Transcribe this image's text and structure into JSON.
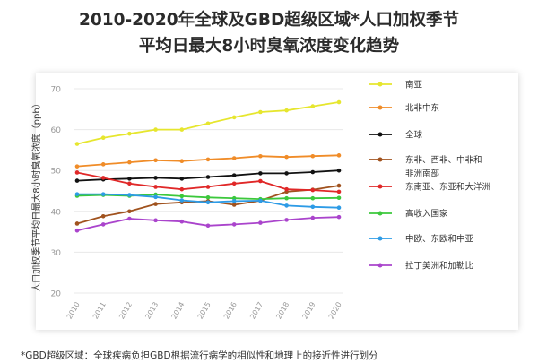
{
  "title_line1": "2010-2020年全球及GBD超级区域*人口加权季节",
  "title_line2": "平均日最大8小时臭氧浓度变化趋势",
  "footnote": "*GBD超级区域：全球疾病负担GBD根据流行病学的相似性和地理上的接近性进行划分",
  "chart_data": {
    "type": "line",
    "title": "",
    "xlabel": "",
    "ylabel": "人口加权季节平均日最大8小时臭氧浓度（ppb）",
    "ylim": [
      20,
      70
    ],
    "yticks": [
      20,
      30,
      40,
      50,
      60,
      70
    ],
    "grid": "horizontal",
    "legend_position": "right",
    "x": [
      "2010",
      "2011",
      "2012",
      "2013",
      "2014",
      "2015",
      "2016",
      "2017",
      "2018",
      "2019",
      "2020"
    ],
    "series": [
      {
        "name": "南亚",
        "color": "#e6e62e",
        "values": [
          56.5,
          58,
          59,
          60,
          60,
          61.5,
          63,
          64.3,
          64.7,
          65.7,
          66.7
        ]
      },
      {
        "name": "北非中东",
        "color": "#f08c28",
        "values": [
          51,
          51.5,
          52,
          52.5,
          52.3,
          52.7,
          53,
          53.5,
          53.3,
          53.5,
          53.7
        ]
      },
      {
        "name": "全球",
        "color": "#111111",
        "values": [
          47.5,
          47.8,
          48,
          48.2,
          48,
          48.4,
          48.8,
          49.3,
          49.3,
          49.6,
          50
        ]
      },
      {
        "name": "东非、西非、中非和非洲南部",
        "color": "#a0521e",
        "values": [
          37,
          38.8,
          40,
          41.8,
          42.2,
          42.5,
          41.6,
          42.6,
          44.8,
          45.3,
          46.3
        ]
      },
      {
        "name": "东南亚、东亚和大洋洲",
        "color": "#e02828",
        "values": [
          49.5,
          48.2,
          46.8,
          46,
          45.4,
          46,
          46.8,
          47.4,
          45.4,
          45.2,
          44.8
        ]
      },
      {
        "name": "高收入国家",
        "color": "#3cc83c",
        "values": [
          43.8,
          44,
          43.8,
          44.1,
          43.7,
          43.4,
          43.2,
          43,
          43.2,
          43.2,
          43.3
        ]
      },
      {
        "name": "中欧、东欧和中亚",
        "color": "#2d9be6",
        "values": [
          44.2,
          44.2,
          44,
          43.5,
          42.7,
          42.2,
          42.5,
          42.6,
          41.4,
          41.1,
          40.9
        ]
      },
      {
        "name": "拉丁美洲和加勒比",
        "color": "#aa44cc",
        "values": [
          35.3,
          36.8,
          38.2,
          37.8,
          37.5,
          36.5,
          36.8,
          37.2,
          37.9,
          38.4,
          38.6
        ]
      }
    ]
  },
  "legend_lines": [
    [
      "南亚"
    ],
    [
      "北非中东"
    ],
    [
      "全球"
    ],
    [
      "东非、西非、中非和",
      "非洲南部"
    ],
    [
      "东南亚、东亚和大洋洲"
    ],
    [
      "高收入国家"
    ],
    [
      "中欧、东欧和中亚"
    ],
    [
      "拉丁美洲和加勒比"
    ]
  ]
}
